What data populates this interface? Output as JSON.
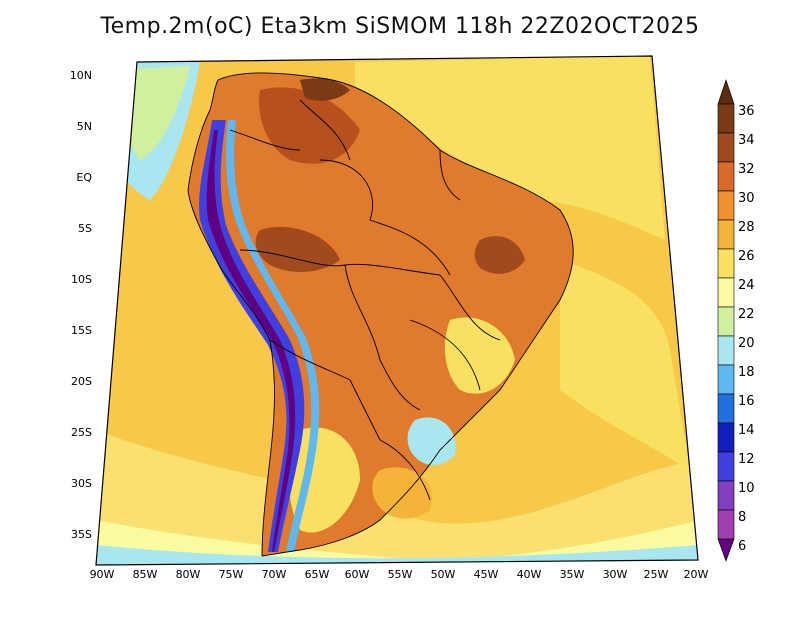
{
  "title": "Temp.2m(oC) Eta3km SiSMOM 118h 22Z02OCT2025",
  "map": {
    "lat_labels": [
      "10N",
      "5N",
      "EQ",
      "5S",
      "10S",
      "15S",
      "20S",
      "25S",
      "30S",
      "35S"
    ],
    "lon_labels": [
      "90W",
      "85W",
      "80W",
      "75W",
      "70W",
      "65W",
      "60W",
      "55W",
      "50W",
      "45W",
      "40W",
      "35W",
      "30W",
      "25W",
      "20W"
    ]
  },
  "colorbar": {
    "labels": [
      "36",
      "34",
      "32",
      "30",
      "28",
      "26",
      "24",
      "22",
      "20",
      "18",
      "16",
      "14",
      "12",
      "10",
      "8",
      "6"
    ],
    "colors": [
      "#5c2a0e",
      "#7a3a14",
      "#a04a1e",
      "#d86a2a",
      "#f0902e",
      "#f4b43a",
      "#f8e060",
      "#fafaa0",
      "#d0f0a0",
      "#a8e6f0",
      "#60b8f0",
      "#2070e0",
      "#1020c0",
      "#4040e0",
      "#8040c0",
      "#a040b0",
      "#600080"
    ]
  },
  "colors": {
    "ocean_warm": "#f8c848",
    "ocean_cool": "#fae070",
    "land_hot": "#e07a2c",
    "land_very_hot": "#b8501e",
    "andes_cold": "#5030a0",
    "andes_mid": "#60a0e8",
    "south_cool": "#a8e0f0"
  }
}
